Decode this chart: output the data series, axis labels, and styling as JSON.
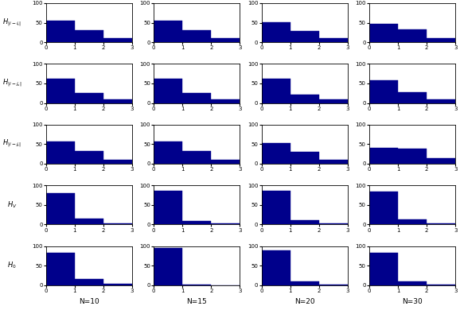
{
  "row_labels": [
    "$H_{|i-i_t|}$",
    "$H_{|i-j_s|}$",
    "$H_{|i-j_t|}$",
    "$H_V$",
    "$H_0$"
  ],
  "col_labels": [
    "N=10",
    "N=15",
    "N=20",
    "N=30"
  ],
  "bar_color": "#00008B",
  "values": [
    [
      [
        55,
        30,
        10
      ],
      [
        55,
        30,
        10
      ],
      [
        52,
        28,
        10
      ],
      [
        48,
        33,
        10
      ]
    ],
    [
      [
        63,
        25,
        10
      ],
      [
        63,
        25,
        10
      ],
      [
        62,
        22,
        10
      ],
      [
        57,
        27,
        10
      ]
    ],
    [
      [
        57,
        32,
        10
      ],
      [
        57,
        32,
        10
      ],
      [
        52,
        30,
        10
      ],
      [
        40,
        38,
        15
      ]
    ],
    [
      [
        80,
        15,
        3
      ],
      [
        87,
        8,
        2
      ],
      [
        86,
        10,
        2
      ],
      [
        84,
        12,
        2
      ]
    ],
    [
      [
        83,
        15,
        3
      ],
      [
        95,
        2,
        0
      ],
      [
        88,
        10,
        2
      ],
      [
        82,
        10,
        2
      ]
    ]
  ]
}
